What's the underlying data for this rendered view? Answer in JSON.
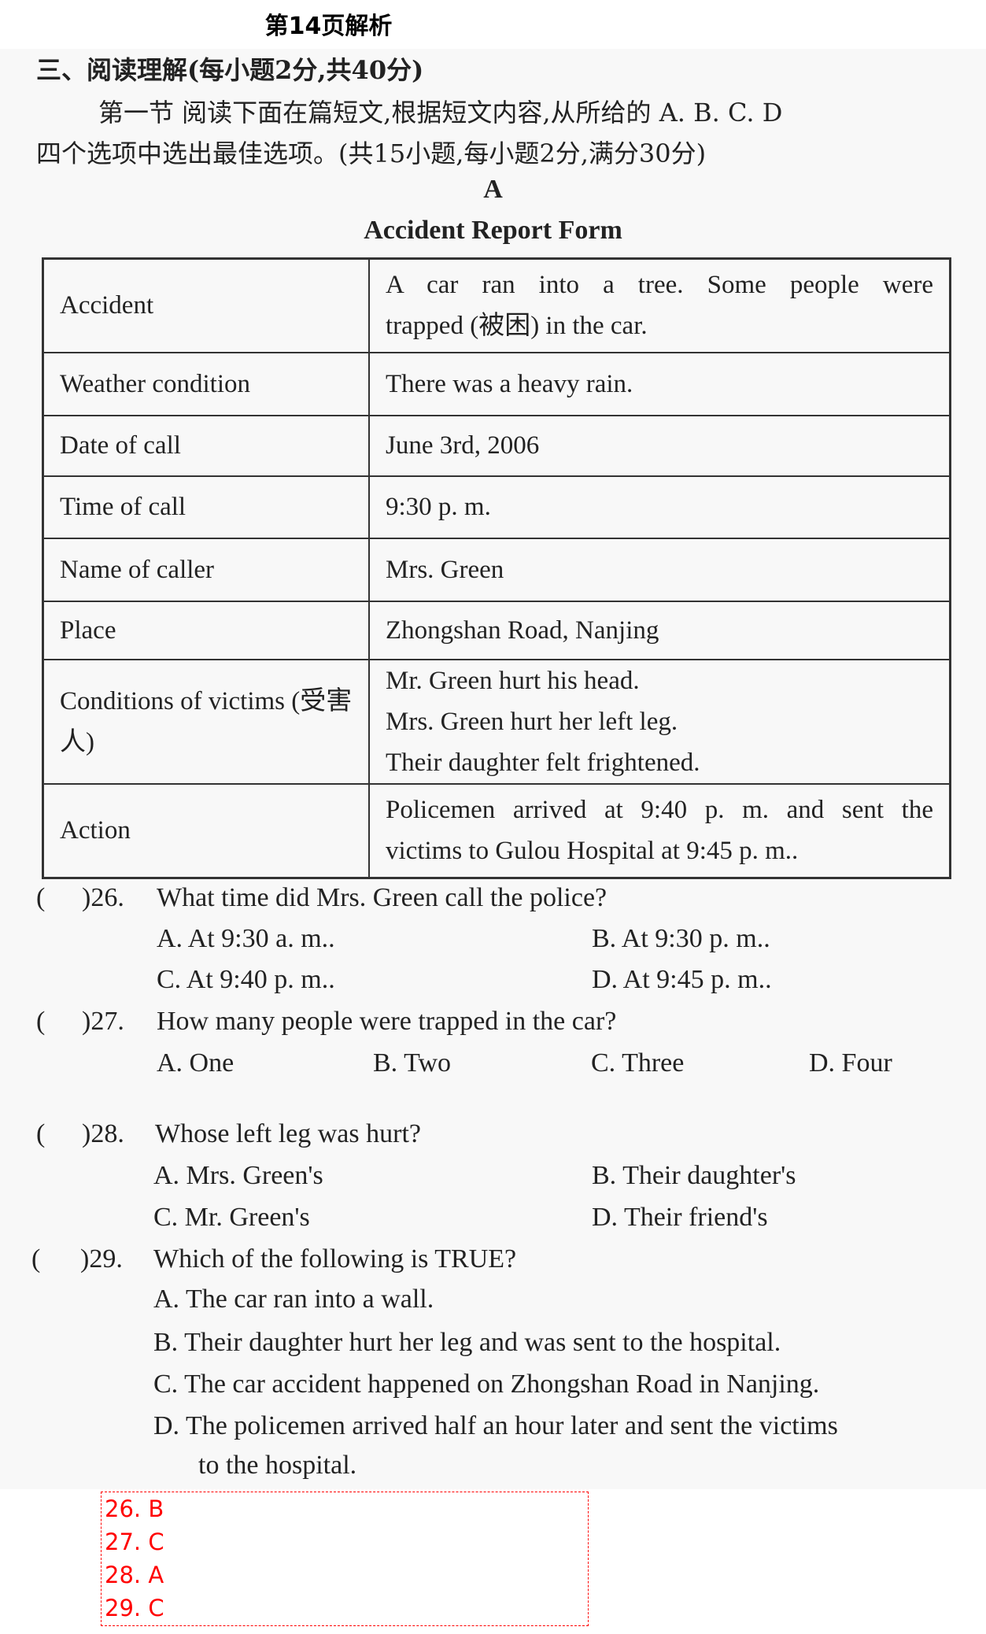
{
  "page_title": "第14页解析",
  "section": {
    "heading": "三、阅读理解(每小题2分,共40分)",
    "instruction_line1": "第一节 阅读下面在篇短文,根据短文内容,从所给的 A. B. C. D",
    "instruction_line2": "四个选项中选出最佳选项。(共15小题,每小题2分,满分30分)",
    "passage_label": "A",
    "form_title": "Accident Report Form"
  },
  "table": {
    "rows": [
      {
        "label": "Accident",
        "value": [
          "A car ran into a tree. Some people were",
          "trapped (被困) in the car."
        ]
      },
      {
        "label": "Weather condition",
        "value": [
          "There was a heavy rain."
        ]
      },
      {
        "label": "Date of call",
        "value": [
          "June 3rd, 2006"
        ]
      },
      {
        "label": "Time of call",
        "value": [
          "9:30 p. m."
        ]
      },
      {
        "label": "Name of caller",
        "value": [
          "Mrs. Green"
        ]
      },
      {
        "label": "Place",
        "value": [
          "Zhongshan Road, Nanjing"
        ]
      },
      {
        "label": "Conditions of victims (受害人)",
        "value": [
          "Mr. Green hurt his head.",
          "Mrs. Green hurt her left leg.",
          "Their daughter felt frightened."
        ]
      },
      {
        "label": "Action",
        "value": [
          "Policemen arrived at 9:40 p. m. and sent the",
          "victims to Gulou Hospital at 9:45 p. m.."
        ]
      }
    ]
  },
  "questions": [
    {
      "paren": "(",
      "number": ")26.",
      "text": "What time did Mrs. Green call the police?",
      "options": [
        "A. At 9:30 a. m..",
        "B. At 9:30 p. m..",
        "C. At 9:40 p. m..",
        "D. At 9:45 p. m.."
      ]
    },
    {
      "paren": "(",
      "number": ")27.",
      "text": "How many people were trapped in the car?",
      "options": [
        "A. One",
        "B. Two",
        "C. Three",
        "D. Four"
      ]
    },
    {
      "paren": "(",
      "number": ")28.",
      "text": "Whose left leg was hurt?",
      "options": [
        "A. Mrs. Green's",
        "B. Their daughter's",
        "C. Mr. Green's",
        "D. Their friend's"
      ]
    },
    {
      "paren": "(",
      "number": ")29.",
      "text": "Which of the following is TRUE?",
      "options": [
        "A. The car ran into a wall.",
        "B. Their daughter hurt her leg and was sent to the hospital.",
        "C. The car accident happened on Zhongshan Road in Nanjing.",
        "D. The policemen arrived half an hour later and sent the victims",
        "to the hospital."
      ]
    }
  ],
  "answers": [
    "26. B",
    "27. C",
    "28. A",
    "29. C"
  ],
  "colors": {
    "answer": "#ff0000",
    "paper": "#f8f8f8",
    "ink": "#222222"
  }
}
